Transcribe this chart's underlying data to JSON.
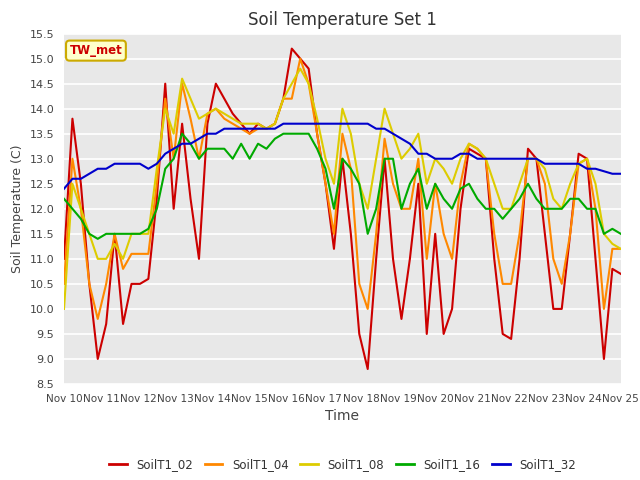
{
  "title": "Soil Temperature Set 1",
  "xlabel": "Time",
  "ylabel": "Soil Temperature (C)",
  "ylim": [
    8.5,
    15.5
  ],
  "yticks": [
    8.5,
    9.0,
    9.5,
    10.0,
    10.5,
    11.0,
    11.5,
    12.0,
    12.5,
    13.0,
    13.5,
    14.0,
    14.5,
    15.0,
    15.5
  ],
  "xtick_labels": [
    "Nov 10",
    "Nov 11",
    "Nov 12",
    "Nov 13",
    "Nov 14",
    "Nov 15",
    "Nov 16",
    "Nov 17",
    "Nov 18",
    "Nov 19",
    "Nov 20",
    "Nov 21",
    "Nov 22",
    "Nov 23",
    "Nov 24",
    "Nov 25"
  ],
  "colors": {
    "SoilT1_02": "#cc0000",
    "SoilT1_04": "#ff8800",
    "SoilT1_08": "#ddcc00",
    "SoilT1_16": "#00aa00",
    "SoilT1_32": "#0000cc"
  },
  "annotation_text": "TW_met",
  "annotation_color": "#cc0000",
  "annotation_bg": "#ffffcc",
  "annotation_border": "#ccaa00",
  "plot_bg": "#e8e8e8",
  "fig_bg": "#ffffff",
  "grid_color": "#ffffff",
  "series": {
    "SoilT1_02": [
      11.0,
      13.8,
      12.5,
      10.5,
      9.0,
      9.7,
      11.5,
      9.7,
      10.5,
      10.5,
      10.6,
      12.2,
      14.5,
      12.0,
      13.7,
      12.2,
      11.0,
      13.7,
      14.5,
      14.2,
      13.9,
      13.7,
      13.5,
      13.7,
      13.6,
      13.7,
      14.2,
      15.2,
      15.0,
      14.8,
      13.5,
      12.5,
      11.2,
      13.0,
      11.5,
      9.5,
      8.8,
      11.0,
      13.0,
      11.0,
      9.8,
      11.0,
      12.5,
      9.5,
      11.5,
      9.5,
      10.0,
      12.0,
      13.2,
      13.1,
      13.0,
      11.0,
      9.5,
      9.4,
      11.0,
      13.2,
      13.0,
      11.5,
      10.0,
      10.0,
      11.5,
      13.1,
      13.0,
      11.0,
      9.0,
      10.8,
      10.7
    ],
    "SoilT1_04": [
      10.5,
      13.0,
      12.0,
      10.5,
      9.8,
      10.5,
      11.5,
      10.8,
      11.1,
      11.1,
      11.1,
      12.5,
      14.2,
      13.0,
      14.5,
      13.8,
      13.0,
      13.9,
      14.0,
      13.8,
      13.7,
      13.6,
      13.5,
      13.6,
      13.6,
      13.7,
      14.2,
      14.2,
      15.0,
      14.5,
      13.5,
      12.5,
      11.5,
      13.5,
      12.8,
      10.5,
      10.0,
      11.5,
      13.4,
      12.5,
      12.0,
      12.0,
      13.0,
      11.0,
      12.5,
      11.5,
      11.0,
      12.5,
      13.3,
      13.2,
      13.0,
      11.5,
      10.5,
      10.5,
      11.5,
      13.0,
      13.0,
      12.5,
      11.0,
      10.5,
      11.5,
      12.9,
      13.0,
      12.0,
      10.0,
      11.2,
      11.2
    ],
    "SoilT1_08": [
      10.0,
      12.5,
      12.0,
      11.5,
      11.0,
      11.0,
      11.3,
      11.0,
      11.5,
      11.5,
      11.5,
      12.8,
      14.0,
      13.5,
      14.6,
      14.2,
      13.8,
      13.9,
      14.0,
      13.9,
      13.8,
      13.7,
      13.7,
      13.7,
      13.6,
      13.7,
      14.2,
      14.5,
      14.8,
      14.5,
      13.8,
      13.0,
      12.5,
      14.0,
      13.5,
      12.5,
      12.0,
      13.0,
      14.0,
      13.5,
      13.0,
      13.2,
      13.5,
      12.5,
      13.0,
      12.8,
      12.5,
      13.0,
      13.3,
      13.2,
      13.0,
      12.5,
      12.0,
      12.0,
      12.5,
      13.0,
      13.0,
      12.8,
      12.2,
      12.0,
      12.5,
      12.9,
      13.0,
      12.5,
      11.5,
      11.3,
      11.2
    ],
    "SoilT1_16": [
      12.2,
      12.0,
      11.8,
      11.5,
      11.4,
      11.5,
      11.5,
      11.5,
      11.5,
      11.5,
      11.6,
      12.0,
      12.8,
      13.0,
      13.5,
      13.3,
      13.0,
      13.2,
      13.2,
      13.2,
      13.0,
      13.3,
      13.0,
      13.3,
      13.2,
      13.4,
      13.5,
      13.5,
      13.5,
      13.5,
      13.2,
      12.8,
      12.0,
      13.0,
      12.8,
      12.5,
      11.5,
      12.0,
      13.0,
      13.0,
      12.0,
      12.5,
      12.8,
      12.0,
      12.5,
      12.2,
      12.0,
      12.4,
      12.5,
      12.2,
      12.0,
      12.0,
      11.8,
      12.0,
      12.2,
      12.5,
      12.2,
      12.0,
      12.0,
      12.0,
      12.2,
      12.2,
      12.0,
      12.0,
      11.5,
      11.6,
      11.5
    ],
    "SoilT1_32": [
      12.4,
      12.6,
      12.6,
      12.7,
      12.8,
      12.8,
      12.9,
      12.9,
      12.9,
      12.9,
      12.8,
      12.9,
      13.1,
      13.2,
      13.3,
      13.3,
      13.4,
      13.5,
      13.5,
      13.6,
      13.6,
      13.6,
      13.6,
      13.6,
      13.6,
      13.6,
      13.7,
      13.7,
      13.7,
      13.7,
      13.7,
      13.7,
      13.7,
      13.7,
      13.7,
      13.7,
      13.7,
      13.6,
      13.6,
      13.5,
      13.4,
      13.3,
      13.1,
      13.1,
      13.0,
      13.0,
      13.0,
      13.1,
      13.1,
      13.0,
      13.0,
      13.0,
      13.0,
      13.0,
      13.0,
      13.0,
      13.0,
      12.9,
      12.9,
      12.9,
      12.9,
      12.9,
      12.8,
      12.8,
      12.75,
      12.7,
      12.7
    ]
  }
}
